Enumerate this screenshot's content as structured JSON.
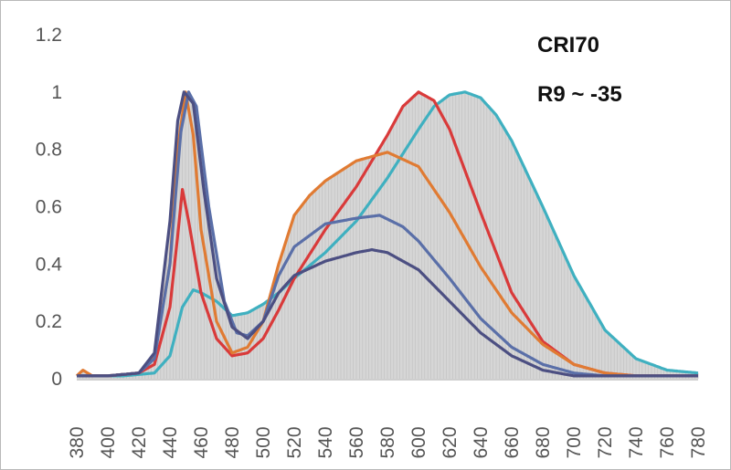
{
  "chart_data": {
    "type": "line",
    "title": "",
    "xlabel": "",
    "ylabel": "",
    "xlim": [
      380,
      780
    ],
    "ylim": [
      0,
      1.2
    ],
    "x_ticks": [
      380,
      400,
      420,
      440,
      460,
      480,
      500,
      520,
      540,
      560,
      580,
      600,
      620,
      640,
      660,
      680,
      700,
      720,
      740,
      760,
      780
    ],
    "y_ticks": [
      {
        "value": 0,
        "label": "0"
      },
      {
        "value": 0.2,
        "label": "0.2"
      },
      {
        "value": 0.4,
        "label": "0.4"
      },
      {
        "value": 0.6,
        "label": "0.6"
      },
      {
        "value": 0.8,
        "label": "0.8"
      },
      {
        "value": 1.0,
        "label": "1"
      },
      {
        "value": 1.2,
        "label": "1.2"
      }
    ],
    "grid": false,
    "legend": "none",
    "annotations": [
      "CRI70",
      "R9 ~ -35"
    ],
    "fill_series_index": 0,
    "fill_color": "#d6d6d6",
    "series": [
      {
        "color": "#3fb0c0",
        "x": [
          380,
          410,
          430,
          440,
          448,
          455,
          460,
          470,
          480,
          490,
          500,
          510,
          520,
          540,
          560,
          580,
          600,
          610,
          620,
          630,
          640,
          650,
          660,
          680,
          700,
          720,
          740,
          760,
          780
        ],
        "values": [
          0.01,
          0.01,
          0.02,
          0.08,
          0.25,
          0.31,
          0.3,
          0.27,
          0.22,
          0.23,
          0.26,
          0.3,
          0.35,
          0.44,
          0.55,
          0.7,
          0.87,
          0.95,
          0.99,
          1.0,
          0.98,
          0.92,
          0.83,
          0.6,
          0.36,
          0.17,
          0.07,
          0.03,
          0.02
        ]
      },
      {
        "color": "#d93a3a",
        "x": [
          380,
          400,
          420,
          430,
          440,
          445,
          448,
          452,
          460,
          470,
          480,
          490,
          500,
          510,
          520,
          540,
          560,
          580,
          590,
          600,
          610,
          620,
          640,
          660,
          680,
          700,
          720,
          740,
          760,
          780
        ],
        "values": [
          0.01,
          0.01,
          0.02,
          0.05,
          0.25,
          0.5,
          0.66,
          0.55,
          0.3,
          0.14,
          0.08,
          0.09,
          0.14,
          0.24,
          0.35,
          0.52,
          0.67,
          0.85,
          0.95,
          1.0,
          0.97,
          0.87,
          0.58,
          0.3,
          0.13,
          0.05,
          0.02,
          0.01,
          0.01,
          0.01
        ]
      },
      {
        "color": "#e07b33",
        "x": [
          380,
          384,
          390,
          400,
          420,
          430,
          440,
          445,
          450,
          455,
          460,
          470,
          480,
          490,
          500,
          510,
          520,
          530,
          540,
          560,
          580,
          600,
          620,
          640,
          660,
          680,
          700,
          720,
          740,
          760,
          780
        ],
        "values": [
          0.01,
          0.03,
          0.01,
          0.01,
          0.02,
          0.08,
          0.4,
          0.8,
          1.0,
          0.85,
          0.52,
          0.2,
          0.09,
          0.11,
          0.2,
          0.4,
          0.57,
          0.64,
          0.69,
          0.76,
          0.79,
          0.74,
          0.58,
          0.39,
          0.23,
          0.12,
          0.05,
          0.02,
          0.01,
          0.01,
          0.01
        ]
      },
      {
        "color": "#5a6fa8",
        "x": [
          380,
          400,
          420,
          430,
          440,
          447,
          452,
          457,
          465,
          475,
          483,
          490,
          500,
          510,
          520,
          540,
          560,
          575,
          590,
          600,
          620,
          640,
          660,
          680,
          700,
          720,
          740,
          760,
          780
        ],
        "values": [
          0.01,
          0.01,
          0.02,
          0.07,
          0.4,
          0.86,
          1.0,
          0.95,
          0.6,
          0.27,
          0.16,
          0.15,
          0.2,
          0.36,
          0.46,
          0.54,
          0.56,
          0.57,
          0.53,
          0.48,
          0.35,
          0.21,
          0.11,
          0.05,
          0.02,
          0.01,
          0.01,
          0.01,
          0.01
        ]
      },
      {
        "color": "#4c4f82",
        "x": [
          380,
          400,
          420,
          430,
          440,
          445,
          449,
          455,
          462,
          470,
          480,
          490,
          500,
          510,
          520,
          540,
          560,
          570,
          580,
          600,
          620,
          640,
          660,
          680,
          700,
          720,
          740,
          760,
          780
        ],
        "values": [
          0.01,
          0.01,
          0.02,
          0.09,
          0.55,
          0.9,
          1.0,
          0.96,
          0.65,
          0.35,
          0.18,
          0.14,
          0.2,
          0.3,
          0.36,
          0.41,
          0.44,
          0.45,
          0.44,
          0.38,
          0.27,
          0.16,
          0.08,
          0.03,
          0.01,
          0.01,
          0.01,
          0.01,
          0.01
        ]
      }
    ]
  }
}
